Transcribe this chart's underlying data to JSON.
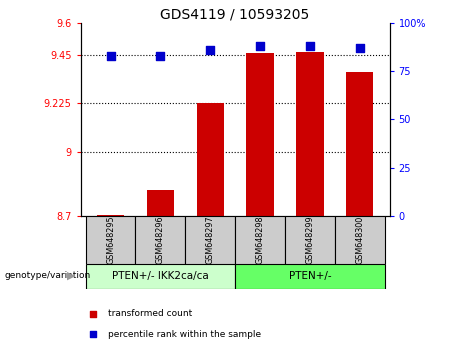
{
  "title": "GDS4119 / 10593205",
  "samples": [
    "GSM648295",
    "GSM648296",
    "GSM648297",
    "GSM648298",
    "GSM648299",
    "GSM648300"
  ],
  "bar_values": [
    8.705,
    8.82,
    9.225,
    9.46,
    9.465,
    9.37
  ],
  "percentile_values": [
    83,
    83,
    86,
    88,
    88,
    87
  ],
  "bar_bottom": 8.7,
  "ylim_left": [
    8.7,
    9.6
  ],
  "ylim_right": [
    0,
    100
  ],
  "yticks_left": [
    8.7,
    9.0,
    9.225,
    9.45,
    9.6
  ],
  "ytick_labels_left": [
    "8.7",
    "9",
    "9.225",
    "9.45",
    "9.6"
  ],
  "yticks_right": [
    0,
    25,
    50,
    75,
    100
  ],
  "ytick_labels_right": [
    "0",
    "25",
    "50",
    "75",
    "100%"
  ],
  "bar_color": "#cc0000",
  "dot_color": "#0000cc",
  "group1_label": "PTEN+/- IKK2ca/ca",
  "group2_label": "PTEN+/-",
  "group1_indices": [
    0,
    1,
    2
  ],
  "group2_indices": [
    3,
    4,
    5
  ],
  "group_box_color1": "#ccffcc",
  "group_box_color2": "#66ff66",
  "sample_box_color": "#cccccc",
  "legend_red_label": "transformed count",
  "legend_blue_label": "percentile rank within the sample",
  "genotype_label": "genotype/variation",
  "dot_size": 28,
  "bar_width": 0.55,
  "title_fontsize": 10,
  "axis_fontsize": 7,
  "sample_fontsize": 5.8,
  "group_fontsize": 7.5,
  "legend_fontsize": 6.5
}
